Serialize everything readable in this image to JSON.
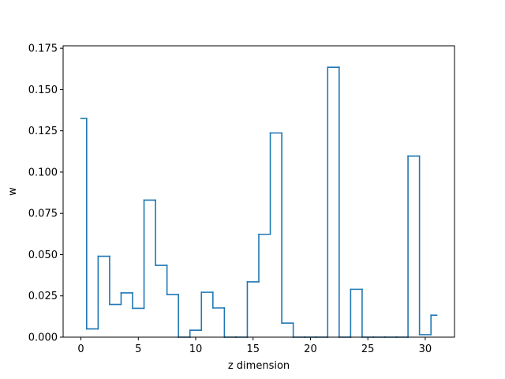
{
  "chart_data": {
    "type": "line",
    "drawstyle": "steps-mid",
    "title": "",
    "xlabel": "z dimension",
    "ylabel": "w",
    "xlim": [
      -1.55,
      32.55
    ],
    "ylim": [
      0,
      0.1765
    ],
    "xticks": [
      0,
      5,
      10,
      15,
      20,
      25,
      30
    ],
    "xtick_labels": [
      "0",
      "5",
      "10",
      "15",
      "20",
      "25",
      "30"
    ],
    "yticks": [
      0.0,
      0.025,
      0.05,
      0.075,
      0.1,
      0.125,
      0.15,
      0.175
    ],
    "ytick_labels": [
      "0.000",
      "0.025",
      "0.050",
      "0.075",
      "0.100",
      "0.125",
      "0.150",
      "0.175"
    ],
    "grid": false,
    "legend": false,
    "series": [
      {
        "color": "#1f77b4",
        "x": [
          0,
          1,
          2,
          3,
          4,
          5,
          6,
          7,
          8,
          9,
          10,
          11,
          12,
          13,
          14,
          15,
          16,
          17,
          18,
          19,
          20,
          21,
          22,
          23,
          24,
          25,
          26,
          27,
          28,
          29,
          30,
          31
        ],
        "y": [
          0.1325,
          0.005,
          0.049,
          0.0198,
          0.0268,
          0.0175,
          0.083,
          0.0435,
          0.0258,
          0.0,
          0.0042,
          0.0272,
          0.0177,
          0.0,
          0.0,
          0.0335,
          0.0623,
          0.1237,
          0.0085,
          0.0,
          0.0,
          0.0,
          0.1635,
          0.0,
          0.029,
          0.0,
          0.0,
          0.0,
          0.0,
          0.1097,
          0.0015,
          0.0133
        ]
      }
    ]
  }
}
